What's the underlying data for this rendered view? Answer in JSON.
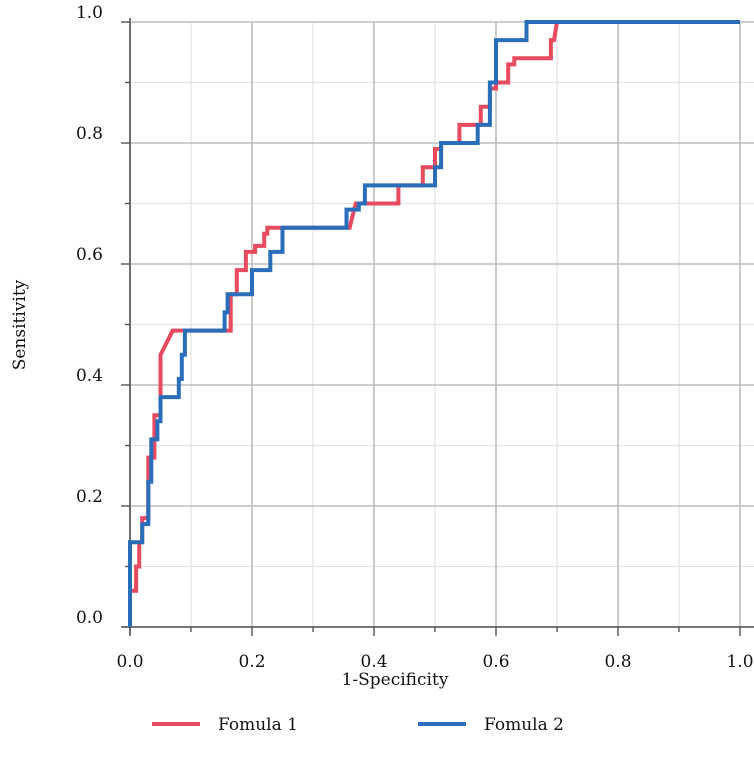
{
  "chart_data": {
    "type": "line",
    "title": "",
    "xlabel": "1-Specificity",
    "ylabel": "Sensitivity",
    "xlim": [
      0,
      1.0
    ],
    "ylim": [
      0,
      1.0
    ],
    "xticks": [
      "0.0",
      "0.2",
      "0.4",
      "0.6",
      "0.8",
      "1.0"
    ],
    "yticks": [
      "0.0",
      "0.2",
      "0.4",
      "0.6",
      "0.8",
      "1.0"
    ],
    "grid": true,
    "legend_position": "bottom",
    "series": [
      {
        "name": "Fomula 1",
        "color": "#e84a5f",
        "x": [
          0.0,
          0.0,
          0.01,
          0.01,
          0.015,
          0.015,
          0.02,
          0.02,
          0.03,
          0.03,
          0.04,
          0.04,
          0.05,
          0.05,
          0.055,
          0.07,
          0.165,
          0.165,
          0.175,
          0.175,
          0.19,
          0.19,
          0.205,
          0.205,
          0.22,
          0.22,
          0.225,
          0.225,
          0.36,
          0.37,
          0.44,
          0.44,
          0.48,
          0.48,
          0.5,
          0.5,
          0.51,
          0.51,
          0.54,
          0.54,
          0.575,
          0.575,
          0.59,
          0.59,
          0.6,
          0.6,
          0.62,
          0.62,
          0.63,
          0.63,
          0.69,
          0.69,
          0.695,
          0.7,
          1.0
        ],
        "y": [
          0.0,
          0.06,
          0.06,
          0.1,
          0.1,
          0.14,
          0.14,
          0.18,
          0.18,
          0.28,
          0.28,
          0.35,
          0.35,
          0.45,
          0.46,
          0.49,
          0.49,
          0.55,
          0.55,
          0.59,
          0.59,
          0.62,
          0.62,
          0.63,
          0.63,
          0.65,
          0.65,
          0.66,
          0.66,
          0.7,
          0.7,
          0.73,
          0.73,
          0.76,
          0.76,
          0.79,
          0.79,
          0.8,
          0.8,
          0.83,
          0.83,
          0.86,
          0.86,
          0.89,
          0.89,
          0.9,
          0.9,
          0.93,
          0.93,
          0.94,
          0.94,
          0.97,
          0.97,
          1.0,
          1.0
        ]
      },
      {
        "name": "Fomula 2",
        "color": "#2a6ebb",
        "x": [
          0.0,
          0.0,
          0.02,
          0.02,
          0.03,
          0.03,
          0.035,
          0.035,
          0.045,
          0.045,
          0.05,
          0.05,
          0.06,
          0.06,
          0.08,
          0.08,
          0.085,
          0.085,
          0.09,
          0.09,
          0.155,
          0.155,
          0.16,
          0.16,
          0.17,
          0.17,
          0.2,
          0.2,
          0.23,
          0.23,
          0.25,
          0.25,
          0.355,
          0.355,
          0.375,
          0.375,
          0.385,
          0.385,
          0.5,
          0.5,
          0.51,
          0.51,
          0.57,
          0.57,
          0.59,
          0.59,
          0.6,
          0.6,
          0.61,
          0.61,
          0.65,
          0.65,
          1.0
        ],
        "y": [
          0.0,
          0.14,
          0.14,
          0.17,
          0.17,
          0.24,
          0.24,
          0.31,
          0.31,
          0.34,
          0.34,
          0.38,
          0.38,
          0.38,
          0.38,
          0.41,
          0.41,
          0.45,
          0.45,
          0.49,
          0.49,
          0.52,
          0.52,
          0.55,
          0.55,
          0.55,
          0.55,
          0.59,
          0.59,
          0.62,
          0.62,
          0.66,
          0.66,
          0.69,
          0.69,
          0.7,
          0.7,
          0.73,
          0.73,
          0.76,
          0.76,
          0.8,
          0.8,
          0.83,
          0.83,
          0.9,
          0.9,
          0.97,
          0.97,
          0.97,
          0.97,
          1.0,
          1.0
        ]
      }
    ]
  }
}
